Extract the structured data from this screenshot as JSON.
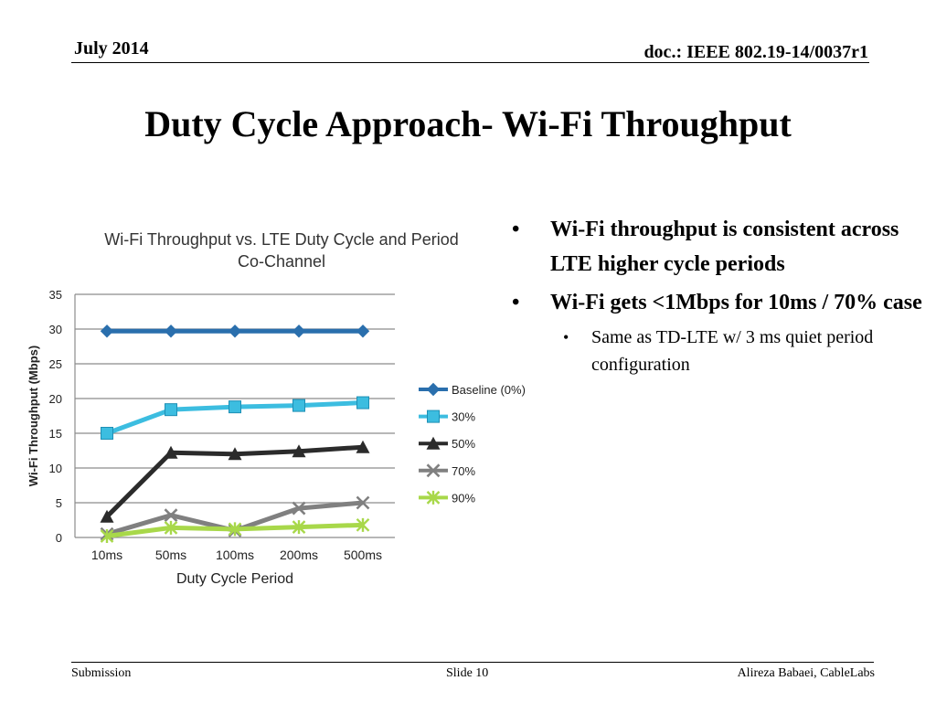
{
  "header": {
    "date": "July 2014",
    "doc": "doc.: IEEE 802.19-14/0037r1"
  },
  "slide_title": "Duty Cycle Approach- Wi-Fi Throughput",
  "bullets": [
    {
      "text": "Wi-Fi throughput is consistent across LTE higher cycle periods",
      "level": 1
    },
    {
      "text": "Wi-Fi gets <1Mbps for 10ms / 70% case",
      "level": 1
    },
    {
      "text": "Same as TD-LTE w/ 3 ms quiet period configuration",
      "level": 2
    }
  ],
  "bullet_glyph": "•",
  "footer": {
    "left": "Submission",
    "center": "Slide 10",
    "right": "Alireza Babaei, CableLabs"
  },
  "chart_data": {
    "type": "line",
    "title": "Wi-Fi Throughput vs. LTE Duty Cycle and Period",
    "subtitle": "Co-Channel",
    "xlabel": "Duty Cycle Period",
    "ylabel": "Wi-Fi Throughput (Mbps)",
    "categories": [
      "10ms",
      "50ms",
      "100ms",
      "200ms",
      "500ms"
    ],
    "ylim": [
      0,
      35
    ],
    "yticks": [
      0,
      5,
      10,
      15,
      20,
      25,
      30,
      35
    ],
    "grid": true,
    "legend_position": "right",
    "series": [
      {
        "name": "Baseline (0%)",
        "color": "#2a6fad",
        "marker": "diamond",
        "values": [
          29.7,
          29.7,
          29.7,
          29.7,
          29.7
        ]
      },
      {
        "name": "30%",
        "color": "#3cbde0",
        "marker": "square",
        "values": [
          15.0,
          18.4,
          18.8,
          19.0,
          19.4
        ]
      },
      {
        "name": "50%",
        "color": "#2b2b2b",
        "marker": "triangle",
        "values": [
          3.0,
          12.2,
          12.0,
          12.4,
          13.0
        ]
      },
      {
        "name": "70%",
        "color": "#808080",
        "marker": "x",
        "values": [
          0.5,
          3.2,
          1.0,
          4.2,
          5.0
        ]
      },
      {
        "name": "90%",
        "color": "#a8d84a",
        "marker": "star",
        "values": [
          0.2,
          1.4,
          1.2,
          1.5,
          1.8
        ]
      }
    ]
  }
}
